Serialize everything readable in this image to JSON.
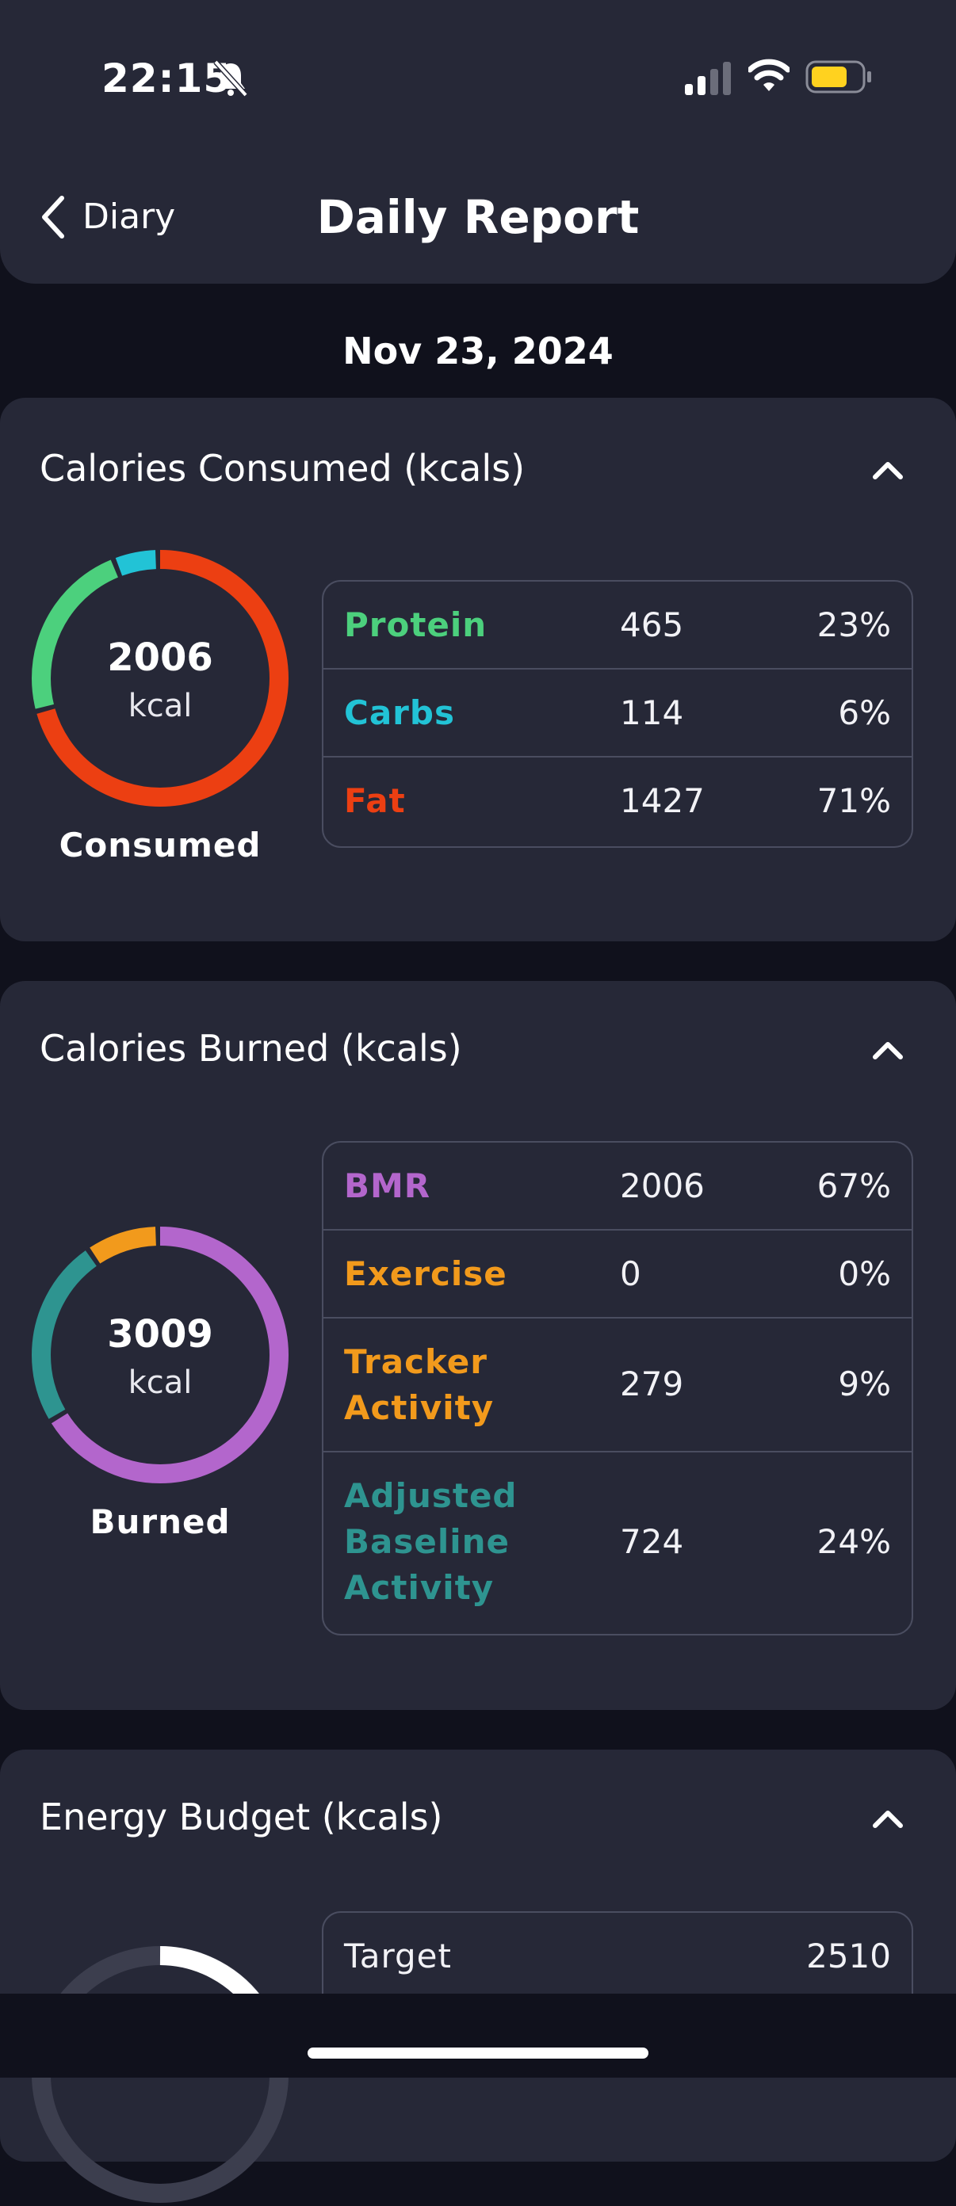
{
  "status_bar": {
    "time": "22:15"
  },
  "nav": {
    "back_label": "Diary",
    "title": "Daily Report"
  },
  "date": "Nov 23, 2024",
  "consumed": {
    "title": "Calories Consumed (kcals)",
    "ring": {
      "value": "2006",
      "unit": "kcal",
      "caption": "Consumed"
    },
    "rows": [
      {
        "label": "Protein",
        "value": "465",
        "pct": "23%",
        "color": "#4cd07d"
      },
      {
        "label": "Carbs",
        "value": "114",
        "pct": "6%",
        "color": "#22c3d6"
      },
      {
        "label": "Fat",
        "value": "1427",
        "pct": "71%",
        "color": "#ec3f12"
      }
    ]
  },
  "burned": {
    "title": "Calories Burned (kcals)",
    "ring": {
      "value": "3009",
      "unit": "kcal",
      "caption": "Burned"
    },
    "rows": [
      {
        "label": "BMR",
        "value": "2006",
        "pct": "67%",
        "color": "#b366cc"
      },
      {
        "label": "Exercise",
        "value": "0",
        "pct": "0%",
        "color": "#f29a1c"
      },
      {
        "label": "Tracker Activity",
        "value": "279",
        "pct": "9%",
        "color": "#f29a1c"
      },
      {
        "label": "Adjusted Baseline Activity",
        "value": "724",
        "pct": "24%",
        "color": "#2e9490"
      }
    ]
  },
  "budget": {
    "title": "Energy Budget (kcals)",
    "rows": [
      {
        "label": "Target",
        "value": "2510"
      }
    ]
  }
}
